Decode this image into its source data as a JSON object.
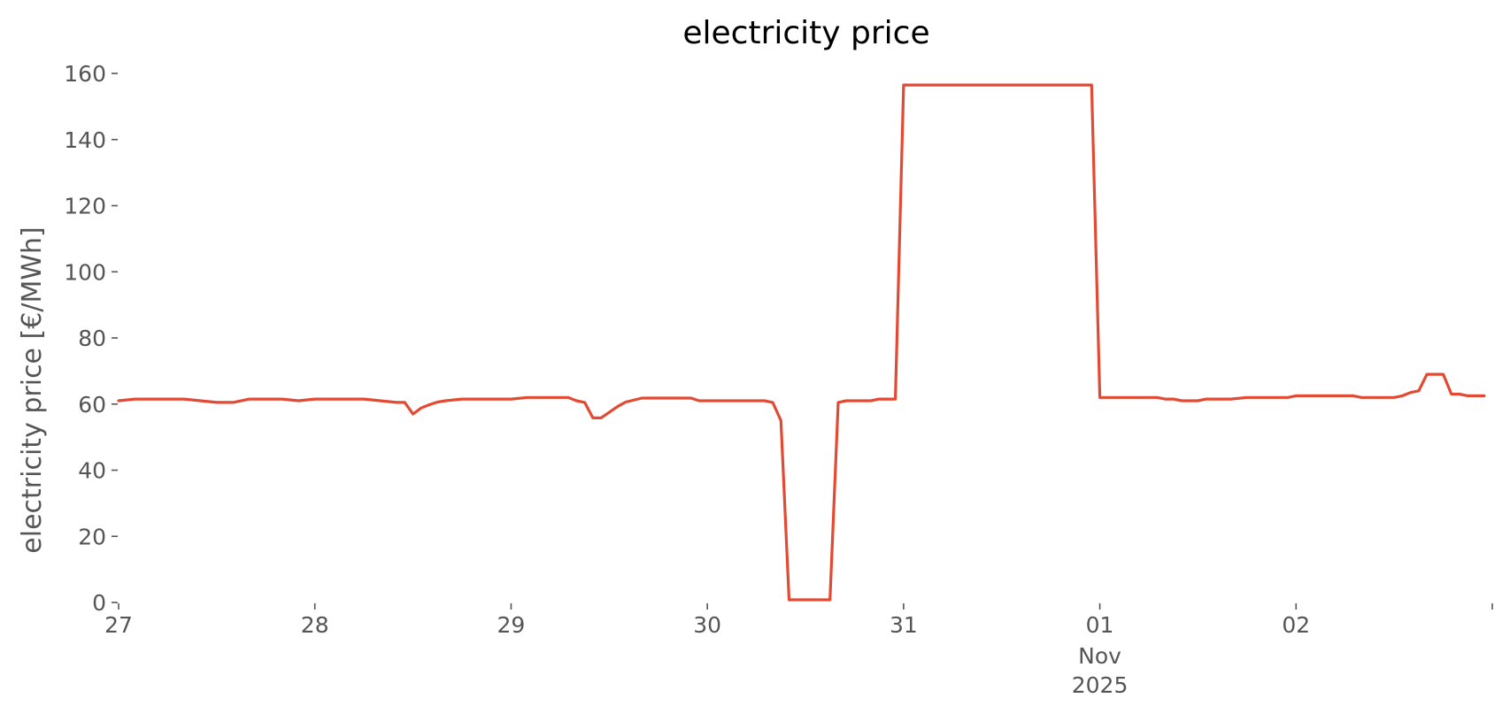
{
  "chart_data": {
    "type": "line",
    "title": "electricity price",
    "xlabel": "",
    "ylabel": "electricity price [€/MWh]",
    "ylim": [
      0,
      160
    ],
    "xlim": [
      "2025-10-27 00:00",
      "2025-11-03 00:00"
    ],
    "x_ticks": [
      {
        "x": "2025-10-27",
        "label": "27"
      },
      {
        "x": "2025-10-28",
        "label": "28"
      },
      {
        "x": "2025-10-29",
        "label": "29"
      },
      {
        "x": "2025-10-30",
        "label": "30"
      },
      {
        "x": "2025-10-31",
        "label": "31"
      },
      {
        "x": "2025-11-01",
        "label": "01",
        "sublabels": [
          "Nov",
          "2025"
        ]
      },
      {
        "x": "2025-11-02",
        "label": "02"
      },
      {
        "x": "2025-11-03",
        "label": ""
      }
    ],
    "y_ticks": [
      0,
      20,
      40,
      60,
      80,
      100,
      120,
      140,
      160
    ],
    "grid": false,
    "series": [
      {
        "color": "#e24a33",
        "points": [
          [
            "2025-10-27 00:00",
            61.0
          ],
          [
            "2025-10-27 02:00",
            61.5
          ],
          [
            "2025-10-27 04:00",
            61.5
          ],
          [
            "2025-10-27 06:00",
            61.5
          ],
          [
            "2025-10-27 08:00",
            61.5
          ],
          [
            "2025-10-27 10:00",
            61.0
          ],
          [
            "2025-10-27 12:00",
            60.5
          ],
          [
            "2025-10-27 14:00",
            60.5
          ],
          [
            "2025-10-27 16:00",
            61.5
          ],
          [
            "2025-10-27 18:00",
            61.5
          ],
          [
            "2025-10-27 20:00",
            61.5
          ],
          [
            "2025-10-27 22:00",
            61.0
          ],
          [
            "2025-10-28 00:00",
            61.5
          ],
          [
            "2025-10-28 02:00",
            61.5
          ],
          [
            "2025-10-28 04:00",
            61.5
          ],
          [
            "2025-10-28 06:00",
            61.5
          ],
          [
            "2025-10-28 08:00",
            61.0
          ],
          [
            "2025-10-28 10:00",
            60.5
          ],
          [
            "2025-10-28 11:00",
            60.5
          ],
          [
            "2025-10-28 12:00",
            57.0
          ],
          [
            "2025-10-28 13:00",
            58.8
          ],
          [
            "2025-10-28 14:00",
            59.8
          ],
          [
            "2025-10-28 15:00",
            60.6
          ],
          [
            "2025-10-28 16:00",
            61.0
          ],
          [
            "2025-10-28 18:00",
            61.5
          ],
          [
            "2025-10-28 20:00",
            61.5
          ],
          [
            "2025-10-28 22:00",
            61.5
          ],
          [
            "2025-10-29 00:00",
            61.5
          ],
          [
            "2025-10-29 02:00",
            62.0
          ],
          [
            "2025-10-29 04:00",
            62.0
          ],
          [
            "2025-10-29 06:00",
            62.0
          ],
          [
            "2025-10-29 07:00",
            62.0
          ],
          [
            "2025-10-29 08:00",
            61.0
          ],
          [
            "2025-10-29 09:00",
            60.5
          ],
          [
            "2025-10-29 10:00",
            55.8
          ],
          [
            "2025-10-29 11:00",
            55.8
          ],
          [
            "2025-10-29 12:00",
            57.5
          ],
          [
            "2025-10-29 13:00",
            59.2
          ],
          [
            "2025-10-29 14:00",
            60.6
          ],
          [
            "2025-10-29 16:00",
            61.8
          ],
          [
            "2025-10-29 18:00",
            61.8
          ],
          [
            "2025-10-29 20:00",
            61.8
          ],
          [
            "2025-10-29 22:00",
            61.8
          ],
          [
            "2025-10-29 23:00",
            61.0
          ],
          [
            "2025-10-30 02:00",
            61.0
          ],
          [
            "2025-10-30 04:00",
            61.0
          ],
          [
            "2025-10-30 06:00",
            61.0
          ],
          [
            "2025-10-30 07:00",
            61.0
          ],
          [
            "2025-10-30 08:00",
            60.5
          ],
          [
            "2025-10-30 09:00",
            55.0
          ],
          [
            "2025-10-30 10:00",
            0.8
          ],
          [
            "2025-10-30 11:00",
            0.8
          ],
          [
            "2025-10-30 12:00",
            0.8
          ],
          [
            "2025-10-30 13:00",
            0.8
          ],
          [
            "2025-10-30 14:00",
            0.8
          ],
          [
            "2025-10-30 15:00",
            0.8
          ],
          [
            "2025-10-30 16:00",
            60.5
          ],
          [
            "2025-10-30 17:00",
            61.0
          ],
          [
            "2025-10-30 20:00",
            61.0
          ],
          [
            "2025-10-30 21:00",
            61.5
          ],
          [
            "2025-10-30 23:00",
            61.5
          ],
          [
            "2025-10-31 00:00",
            156.5
          ],
          [
            "2025-10-31 12:00",
            156.5
          ],
          [
            "2025-10-31 23:00",
            156.5
          ],
          [
            "2025-11-01 00:00",
            62.0
          ],
          [
            "2025-11-01 06:00",
            62.0
          ],
          [
            "2025-11-01 07:00",
            62.0
          ],
          [
            "2025-11-01 08:00",
            61.5
          ],
          [
            "2025-11-01 09:00",
            61.5
          ],
          [
            "2025-11-01 10:00",
            61.0
          ],
          [
            "2025-11-01 12:00",
            61.0
          ],
          [
            "2025-11-01 13:00",
            61.5
          ],
          [
            "2025-11-01 16:00",
            61.5
          ],
          [
            "2025-11-01 18:00",
            62.0
          ],
          [
            "2025-11-01 23:00",
            62.0
          ],
          [
            "2025-11-02 00:00",
            62.5
          ],
          [
            "2025-11-02 07:00",
            62.5
          ],
          [
            "2025-11-02 08:00",
            62.0
          ],
          [
            "2025-11-02 12:00",
            62.0
          ],
          [
            "2025-11-02 13:00",
            62.5
          ],
          [
            "2025-11-02 14:00",
            63.5
          ],
          [
            "2025-11-02 15:00",
            64.0
          ],
          [
            "2025-11-02 16:00",
            69.0
          ],
          [
            "2025-11-02 17:00",
            69.0
          ],
          [
            "2025-11-02 18:00",
            69.0
          ],
          [
            "2025-11-02 19:00",
            63.0
          ],
          [
            "2025-11-02 20:00",
            63.0
          ],
          [
            "2025-11-02 21:00",
            62.5
          ],
          [
            "2025-11-02 22:00",
            62.5
          ],
          [
            "2025-11-02 23:00",
            62.5
          ]
        ]
      }
    ]
  }
}
